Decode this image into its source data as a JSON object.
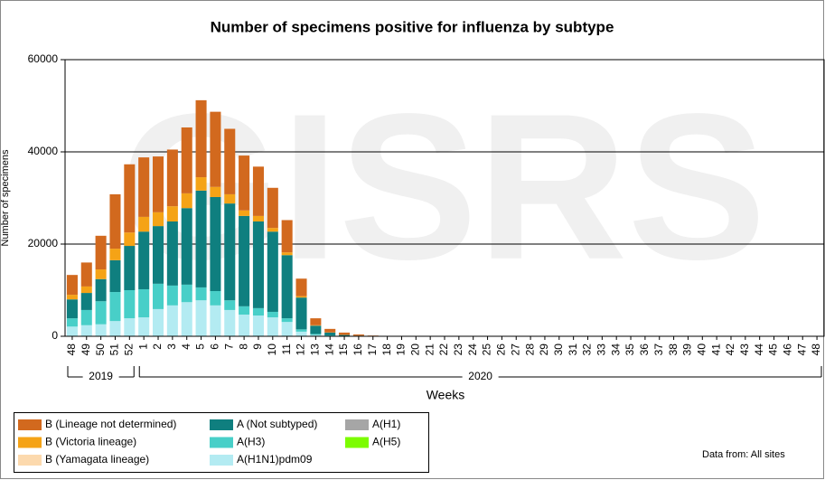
{
  "chart_data": {
    "type": "bar",
    "stacked": true,
    "title": "Number of specimens positive for influenza by subtype",
    "watermark": "GISRS",
    "y_label": "Number of specimens",
    "x_label": "Weeks",
    "years": [
      "2019",
      "2020"
    ],
    "source": "Data from: All sites",
    "categories": [
      "48",
      "49",
      "50",
      "51",
      "52",
      "1",
      "2",
      "3",
      "4",
      "5",
      "6",
      "7",
      "8",
      "9",
      "10",
      "11",
      "12",
      "13",
      "14",
      "15",
      "16",
      "17",
      "18",
      "19",
      "20",
      "21",
      "22",
      "23",
      "24",
      "25",
      "26",
      "27",
      "28",
      "29",
      "30",
      "31",
      "32",
      "33",
      "34",
      "35",
      "36",
      "37",
      "38",
      "39",
      "40",
      "41",
      "42",
      "43",
      "44",
      "45",
      "46",
      "47",
      "48"
    ],
    "ylim": [
      0,
      60000
    ],
    "yticks": [
      0,
      20000,
      40000,
      60000
    ],
    "grid": true,
    "series": [
      {
        "name": "A(H1N1)pdm09",
        "color": "#b3ebf2",
        "values": [
          2100,
          2400,
          2600,
          3300,
          3900,
          4100,
          5900,
          6700,
          7400,
          7800,
          6700,
          5700,
          4700,
          4500,
          4100,
          3100,
          1000,
          300,
          100,
          50,
          20,
          10,
          0,
          0,
          0,
          0,
          0,
          0,
          0,
          0,
          0,
          0,
          0,
          0,
          0,
          0,
          0,
          0,
          0,
          0,
          0,
          0,
          0,
          0,
          0,
          0,
          0,
          0,
          0,
          0,
          0,
          0,
          0
        ]
      },
      {
        "name": "A(H3)",
        "color": "#48cfc8",
        "values": [
          1800,
          3300,
          5000,
          6300,
          6100,
          6100,
          5500,
          4300,
          3800,
          2800,
          3100,
          2100,
          1800,
          1600,
          1200,
          800,
          500,
          200,
          100,
          30,
          10,
          0,
          0,
          0,
          0,
          0,
          0,
          0,
          0,
          0,
          0,
          0,
          0,
          0,
          0,
          0,
          0,
          0,
          0,
          0,
          0,
          0,
          0,
          0,
          0,
          0,
          0,
          0,
          0,
          0,
          0,
          0,
          0
        ]
      },
      {
        "name": "A (Not subtyped)",
        "color": "#0f7f7f",
        "values": [
          4100,
          3700,
          4800,
          6900,
          9600,
          12500,
          12500,
          13900,
          16600,
          21000,
          20400,
          21000,
          19600,
          18800,
          17400,
          13700,
          6900,
          1800,
          600,
          200,
          100,
          50,
          0,
          0,
          0,
          0,
          0,
          0,
          0,
          0,
          0,
          0,
          0,
          0,
          0,
          0,
          0,
          0,
          0,
          0,
          0,
          0,
          0,
          0,
          0,
          0,
          0,
          0,
          0,
          0,
          0,
          0,
          0
        ]
      },
      {
        "name": "A(H1)",
        "color": "#a6a6a6",
        "values": [
          0,
          0,
          0,
          0,
          0,
          0,
          0,
          0,
          0,
          0,
          0,
          0,
          0,
          0,
          0,
          0,
          0,
          0,
          0,
          0,
          0,
          0,
          0,
          0,
          0,
          0,
          0,
          0,
          0,
          0,
          0,
          0,
          0,
          0,
          0,
          0,
          0,
          0,
          0,
          0,
          0,
          0,
          0,
          0,
          0,
          0,
          0,
          0,
          0,
          0,
          0,
          0,
          0
        ]
      },
      {
        "name": "A(H5)",
        "color": "#7cfc00",
        "values": [
          0,
          0,
          0,
          0,
          0,
          0,
          0,
          0,
          0,
          0,
          0,
          0,
          0,
          0,
          0,
          0,
          0,
          0,
          0,
          0,
          0,
          0,
          0,
          0,
          0,
          0,
          0,
          0,
          0,
          0,
          0,
          0,
          0,
          0,
          0,
          0,
          0,
          0,
          0,
          0,
          0,
          0,
          0,
          0,
          0,
          0,
          0,
          0,
          0,
          0,
          0,
          0,
          0
        ]
      },
      {
        "name": "B (Yamagata lineage)",
        "color": "#fcd9ad",
        "values": [
          0,
          0,
          0,
          0,
          0,
          0,
          0,
          0,
          0,
          0,
          0,
          0,
          0,
          0,
          0,
          0,
          0,
          0,
          0,
          0,
          0,
          0,
          0,
          0,
          0,
          0,
          0,
          0,
          0,
          0,
          0,
          0,
          0,
          0,
          0,
          0,
          0,
          0,
          0,
          0,
          0,
          0,
          0,
          0,
          0,
          0,
          0,
          0,
          0,
          0,
          0,
          0,
          0
        ]
      },
      {
        "name": "B (Victoria lineage)",
        "color": "#f5a316",
        "values": [
          1000,
          1400,
          2100,
          2500,
          2900,
          3200,
          3000,
          3300,
          3200,
          2900,
          2200,
          2000,
          1200,
          1200,
          800,
          600,
          300,
          100,
          50,
          20,
          10,
          0,
          0,
          0,
          0,
          0,
          0,
          0,
          0,
          0,
          0,
          0,
          0,
          0,
          0,
          0,
          0,
          0,
          0,
          0,
          0,
          0,
          0,
          0,
          0,
          0,
          0,
          0,
          0,
          0,
          0,
          0,
          0
        ]
      },
      {
        "name": "B (Lineage not determined)",
        "color": "#d2691e",
        "values": [
          4300,
          5200,
          7300,
          11800,
          14800,
          12900,
          12100,
          12300,
          14300,
          16700,
          16300,
          14200,
          11900,
          10700,
          8700,
          7000,
          3800,
          1500,
          750,
          500,
          250,
          90,
          60,
          60,
          60,
          60,
          60,
          60,
          60,
          60,
          60,
          60,
          60,
          60,
          60,
          60,
          60,
          60,
          60,
          60,
          60,
          60,
          60,
          60,
          60,
          60,
          60,
          60,
          60,
          60,
          60,
          60,
          60
        ]
      }
    ]
  }
}
